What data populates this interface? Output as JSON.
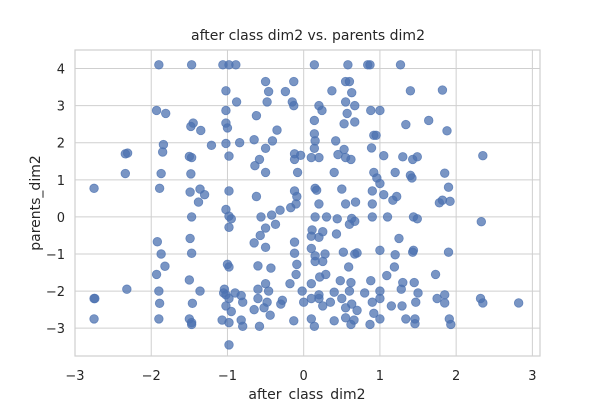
{
  "chart_data": {
    "type": "scatter",
    "title": "after class dim2 vs. parents dim2",
    "xlabel": "after_class_dim2",
    "ylabel": "parents_dim2",
    "xlim": [
      -3.0,
      3.1
    ],
    "ylim": [
      -3.75,
      4.5
    ],
    "xticks": [
      -3,
      -2,
      -1,
      0,
      1,
      2,
      3
    ],
    "yticks": [
      -3,
      -2,
      -1,
      0,
      1,
      2,
      3,
      4
    ],
    "grid": true,
    "point_color": "#4c72b0",
    "points": [
      [
        -1.9,
        4.1
      ],
      [
        -1.47,
        4.1
      ],
      [
        -1.06,
        4.1
      ],
      [
        -0.98,
        4.1
      ],
      [
        -0.89,
        4.1
      ],
      [
        0.14,
        4.1
      ],
      [
        0.58,
        4.1
      ],
      [
        0.84,
        4.1
      ],
      [
        0.87,
        4.1
      ],
      [
        1.27,
        4.1
      ],
      [
        -0.5,
        3.65
      ],
      [
        -0.13,
        3.65
      ],
      [
        0.55,
        3.65
      ],
      [
        0.6,
        3.65
      ],
      [
        -0.24,
        3.38
      ],
      [
        -0.46,
        3.38
      ],
      [
        -1.02,
        3.4
      ],
      [
        0.37,
        3.4
      ],
      [
        0.63,
        3.35
      ],
      [
        1.4,
        3.4
      ],
      [
        1.82,
        3.42
      ],
      [
        -0.88,
        3.1
      ],
      [
        -0.48,
        3.1
      ],
      [
        -0.15,
        3.1
      ],
      [
        -0.13,
        3.0
      ],
      [
        0.2,
        3.0
      ],
      [
        0.55,
        3.1
      ],
      [
        0.67,
        3.0
      ],
      [
        -1.93,
        2.87
      ],
      [
        -1.81,
        2.79
      ],
      [
        -1.02,
        2.87
      ],
      [
        0.24,
        2.87
      ],
      [
        0.57,
        2.79
      ],
      [
        0.88,
        2.87
      ],
      [
        1.0,
        2.87
      ],
      [
        -1.45,
        2.53
      ],
      [
        -1.02,
        2.53
      ],
      [
        -1.0,
        2.4
      ],
      [
        -0.62,
        2.73
      ],
      [
        0.14,
        2.6
      ],
      [
        0.53,
        2.51
      ],
      [
        0.67,
        2.56
      ],
      [
        1.34,
        2.49
      ],
      [
        1.64,
        2.6
      ],
      [
        -1.48,
        2.44
      ],
      [
        -1.35,
        2.33
      ],
      [
        -0.35,
        2.34
      ],
      [
        0.92,
        2.2
      ],
      [
        0.95,
        2.2
      ],
      [
        1.88,
        2.32
      ],
      [
        0.14,
        2.24
      ],
      [
        -0.65,
        2.08
      ],
      [
        -0.84,
        2.0
      ],
      [
        -0.41,
        2.05
      ],
      [
        0.15,
        2.05
      ],
      [
        0.42,
        2.05
      ],
      [
        -1.84,
        1.95
      ],
      [
        -1.21,
        1.93
      ],
      [
        -1.02,
        1.98
      ],
      [
        -0.5,
        1.85
      ],
      [
        0.14,
        1.85
      ],
      [
        0.53,
        1.82
      ],
      [
        0.89,
        1.86
      ],
      [
        -2.31,
        1.72
      ],
      [
        -2.34,
        1.7
      ],
      [
        -1.85,
        1.75
      ],
      [
        -1.5,
        1.63
      ],
      [
        -1.47,
        1.6
      ],
      [
        -0.98,
        1.64
      ],
      [
        -0.58,
        1.55
      ],
      [
        -0.12,
        1.7
      ],
      [
        -0.04,
        1.66
      ],
      [
        -0.12,
        1.55
      ],
      [
        0.1,
        1.6
      ],
      [
        0.2,
        1.6
      ],
      [
        0.45,
        1.68
      ],
      [
        0.55,
        1.6
      ],
      [
        0.62,
        1.55
      ],
      [
        1.05,
        1.65
      ],
      [
        1.3,
        1.62
      ],
      [
        1.43,
        1.55
      ],
      [
        1.49,
        1.62
      ],
      [
        2.35,
        1.65
      ],
      [
        -2.34,
        1.17
      ],
      [
        -1.87,
        1.17
      ],
      [
        -1.48,
        1.16
      ],
      [
        -0.64,
        1.38
      ],
      [
        -0.5,
        1.2
      ],
      [
        -0.08,
        1.2
      ],
      [
        0.4,
        1.2
      ],
      [
        0.92,
        1.2
      ],
      [
        1.2,
        1.2
      ],
      [
        0.96,
        1.05
      ],
      [
        1.0,
        0.9
      ],
      [
        1.4,
        1.12
      ],
      [
        1.42,
        1.05
      ],
      [
        1.85,
        1.18
      ],
      [
        -2.75,
        0.77
      ],
      [
        -1.89,
        0.77
      ],
      [
        -1.36,
        0.75
      ],
      [
        -1.49,
        0.67
      ],
      [
        -1.3,
        0.6
      ],
      [
        -0.98,
        0.7
      ],
      [
        -0.62,
        0.55
      ],
      [
        -0.12,
        0.7
      ],
      [
        0.15,
        0.77
      ],
      [
        0.17,
        0.72
      ],
      [
        0.5,
        0.75
      ],
      [
        0.9,
        0.7
      ],
      [
        1.05,
        0.6
      ],
      [
        1.22,
        0.55
      ],
      [
        1.9,
        0.8
      ],
      [
        -1.38,
        0.4
      ],
      [
        -0.09,
        0.55
      ],
      [
        -0.1,
        0.35
      ],
      [
        0.2,
        0.35
      ],
      [
        0.55,
        0.35
      ],
      [
        0.68,
        0.4
      ],
      [
        0.9,
        0.35
      ],
      [
        1.17,
        0.45
      ],
      [
        1.78,
        0.38
      ],
      [
        1.82,
        0.45
      ],
      [
        1.92,
        0.42
      ],
      [
        -1.47,
        0.0
      ],
      [
        -1.02,
        0.2
      ],
      [
        -0.98,
        0.02
      ],
      [
        -0.95,
        -0.05
      ],
      [
        -0.56,
        0.0
      ],
      [
        -0.42,
        0.05
      ],
      [
        -0.31,
        0.18
      ],
      [
        -0.17,
        0.25
      ],
      [
        0.15,
        0.0
      ],
      [
        0.3,
        0.0
      ],
      [
        0.44,
        -0.05
      ],
      [
        0.63,
        -0.04
      ],
      [
        0.9,
        0.0
      ],
      [
        1.1,
        0.0
      ],
      [
        1.44,
        0.0
      ],
      [
        1.49,
        -0.05
      ],
      [
        2.33,
        -0.13
      ],
      [
        -0.98,
        -0.28
      ],
      [
        -0.5,
        -0.3
      ],
      [
        -0.37,
        -0.2
      ],
      [
        0.11,
        -0.35
      ],
      [
        0.25,
        -0.4
      ],
      [
        0.6,
        -0.2
      ],
      [
        0.67,
        -0.12
      ],
      [
        -0.57,
        -0.5
      ],
      [
        -1.49,
        -0.58
      ],
      [
        -0.12,
        -0.68
      ],
      [
        0.1,
        -0.52
      ],
      [
        0.2,
        -0.55
      ],
      [
        0.43,
        -0.46
      ],
      [
        1.25,
        -0.58
      ],
      [
        -1.92,
        -0.67
      ],
      [
        -1.93,
        -1.55
      ],
      [
        -0.65,
        -0.7
      ],
      [
        -0.5,
        -0.82
      ],
      [
        0.1,
        -0.85
      ],
      [
        0.52,
        -0.95
      ],
      [
        1.0,
        -0.9
      ],
      [
        1.44,
        -0.9
      ],
      [
        1.43,
        -0.95
      ],
      [
        1.9,
        -0.95
      ],
      [
        -1.87,
        -1.0
      ],
      [
        -1.47,
        -0.98
      ],
      [
        -0.12,
        -0.98
      ],
      [
        -0.09,
        -1.28
      ],
      [
        0.15,
        -1.05
      ],
      [
        0.28,
        -1.0
      ],
      [
        0.67,
        -1.0
      ],
      [
        0.7,
        -0.97
      ],
      [
        1.2,
        -1.02
      ],
      [
        -1.82,
        -1.33
      ],
      [
        -1.0,
        -1.28
      ],
      [
        -0.98,
        -1.35
      ],
      [
        -0.6,
        -1.32
      ],
      [
        -0.43,
        -1.38
      ],
      [
        0.15,
        -1.2
      ],
      [
        0.25,
        -1.2
      ],
      [
        0.59,
        -1.35
      ],
      [
        1.19,
        -1.35
      ],
      [
        -0.1,
        -1.55
      ],
      [
        0.21,
        -1.62
      ],
      [
        0.29,
        -1.55
      ],
      [
        0.48,
        -1.72
      ],
      [
        0.62,
        -1.77
      ],
      [
        0.88,
        -1.72
      ],
      [
        1.09,
        -1.58
      ],
      [
        1.3,
        -1.77
      ],
      [
        1.45,
        -1.77
      ],
      [
        1.73,
        -1.55
      ],
      [
        -1.5,
        -1.7
      ],
      [
        -1.04,
        -1.95
      ],
      [
        -1.05,
        -2.05
      ],
      [
        -1.02,
        -2.1
      ],
      [
        -0.9,
        -2.05
      ],
      [
        -0.6,
        -1.95
      ],
      [
        -0.5,
        -1.8
      ],
      [
        -0.46,
        -2.0
      ],
      [
        -0.18,
        -1.8
      ],
      [
        -0.02,
        -2.0
      ],
      [
        0.1,
        -1.8
      ],
      [
        0.2,
        -2.1
      ],
      [
        0.4,
        -2.03
      ],
      [
        0.6,
        -2.0
      ],
      [
        0.8,
        -2.05
      ],
      [
        1.0,
        -2.0
      ],
      [
        1.28,
        -1.95
      ],
      [
        1.5,
        -2.05
      ],
      [
        -2.32,
        -1.95
      ],
      [
        -1.9,
        -2.0
      ],
      [
        -1.36,
        -2.0
      ],
      [
        -0.98,
        -2.2
      ],
      [
        -0.8,
        -2.3
      ],
      [
        -0.82,
        -2.12
      ],
      [
        -0.6,
        -2.2
      ],
      [
        -0.48,
        -2.3
      ],
      [
        -0.28,
        -2.25
      ],
      [
        0.1,
        -2.2
      ],
      [
        0.2,
        -2.2
      ],
      [
        0.35,
        -2.3
      ],
      [
        0.5,
        -2.2
      ],
      [
        0.63,
        -2.35
      ],
      [
        0.9,
        -2.3
      ],
      [
        1.0,
        -2.2
      ],
      [
        1.15,
        -2.4
      ],
      [
        1.47,
        -2.3
      ],
      [
        1.75,
        -2.2
      ],
      [
        1.85,
        -2.1
      ],
      [
        2.32,
        -2.2
      ],
      [
        2.82,
        -2.32
      ],
      [
        -2.75,
        -2.2
      ],
      [
        -2.74,
        -2.2
      ],
      [
        -1.89,
        -2.33
      ],
      [
        -1.46,
        -2.33
      ],
      [
        -1.02,
        -2.4
      ],
      [
        -0.95,
        -2.55
      ],
      [
        -0.65,
        -2.5
      ],
      [
        -0.52,
        -2.45
      ],
      [
        -0.3,
        -2.35
      ],
      [
        0.0,
        -2.3
      ],
      [
        0.25,
        -2.4
      ],
      [
        0.55,
        -2.45
      ],
      [
        0.7,
        -2.52
      ],
      [
        0.92,
        -2.6
      ],
      [
        1.29,
        -2.4
      ],
      [
        1.85,
        -2.32
      ],
      [
        2.35,
        -2.32
      ],
      [
        -2.75,
        -2.75
      ],
      [
        -1.9,
        -2.75
      ],
      [
        -1.5,
        -2.75
      ],
      [
        -1.47,
        -2.85
      ],
      [
        -1.47,
        -2.9
      ],
      [
        -1.07,
        -2.78
      ],
      [
        -0.98,
        -2.85
      ],
      [
        -0.82,
        -2.78
      ],
      [
        -0.8,
        -2.95
      ],
      [
        -0.44,
        -2.65
      ],
      [
        -0.58,
        -2.95
      ],
      [
        -0.13,
        -2.8
      ],
      [
        0.1,
        -2.75
      ],
      [
        0.14,
        -2.95
      ],
      [
        0.4,
        -2.8
      ],
      [
        0.55,
        -2.72
      ],
      [
        0.62,
        -2.9
      ],
      [
        0.66,
        -2.78
      ],
      [
        0.87,
        -2.9
      ],
      [
        1.0,
        -2.75
      ],
      [
        1.34,
        -2.75
      ],
      [
        1.46,
        -2.75
      ],
      [
        1.46,
        -2.88
      ],
      [
        1.91,
        -2.75
      ],
      [
        1.93,
        -2.9
      ],
      [
        -0.98,
        -3.45
      ]
    ]
  }
}
